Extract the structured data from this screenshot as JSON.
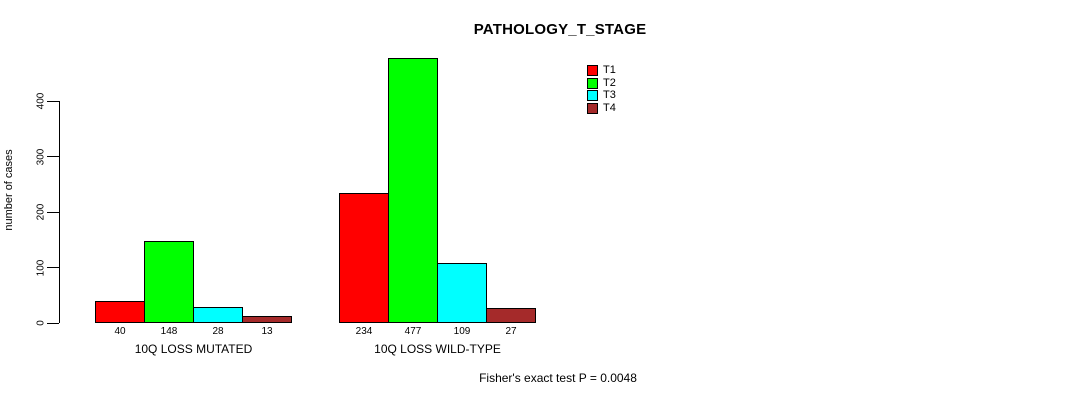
{
  "page": {
    "background": "#ffffff",
    "text_color": "#000000"
  },
  "chart_data": {
    "type": "bar",
    "title": "PATHOLOGY_T_STAGE",
    "ylabel": "number of cases",
    "xlabel": "",
    "ylim": [
      0,
      400
    ],
    "yticks": [
      0,
      100,
      200,
      300,
      400
    ],
    "grid": false,
    "legend_position": "top-right",
    "bar_value_labels": true,
    "categories": [
      "10Q LOSS MUTATED",
      "10Q LOSS WILD-TYPE"
    ],
    "series": [
      {
        "name": "T1",
        "color": "#ff0000",
        "values": [
          40,
          234
        ]
      },
      {
        "name": "T2",
        "color": "#00ff00",
        "values": [
          148,
          477
        ]
      },
      {
        "name": "T3",
        "color": "#00ffff",
        "values": [
          28,
          109
        ]
      },
      {
        "name": "T4",
        "color": "#a52a2a",
        "values": [
          13,
          27
        ]
      }
    ],
    "annotation": "Fisher's exact test P = 0.0048"
  }
}
